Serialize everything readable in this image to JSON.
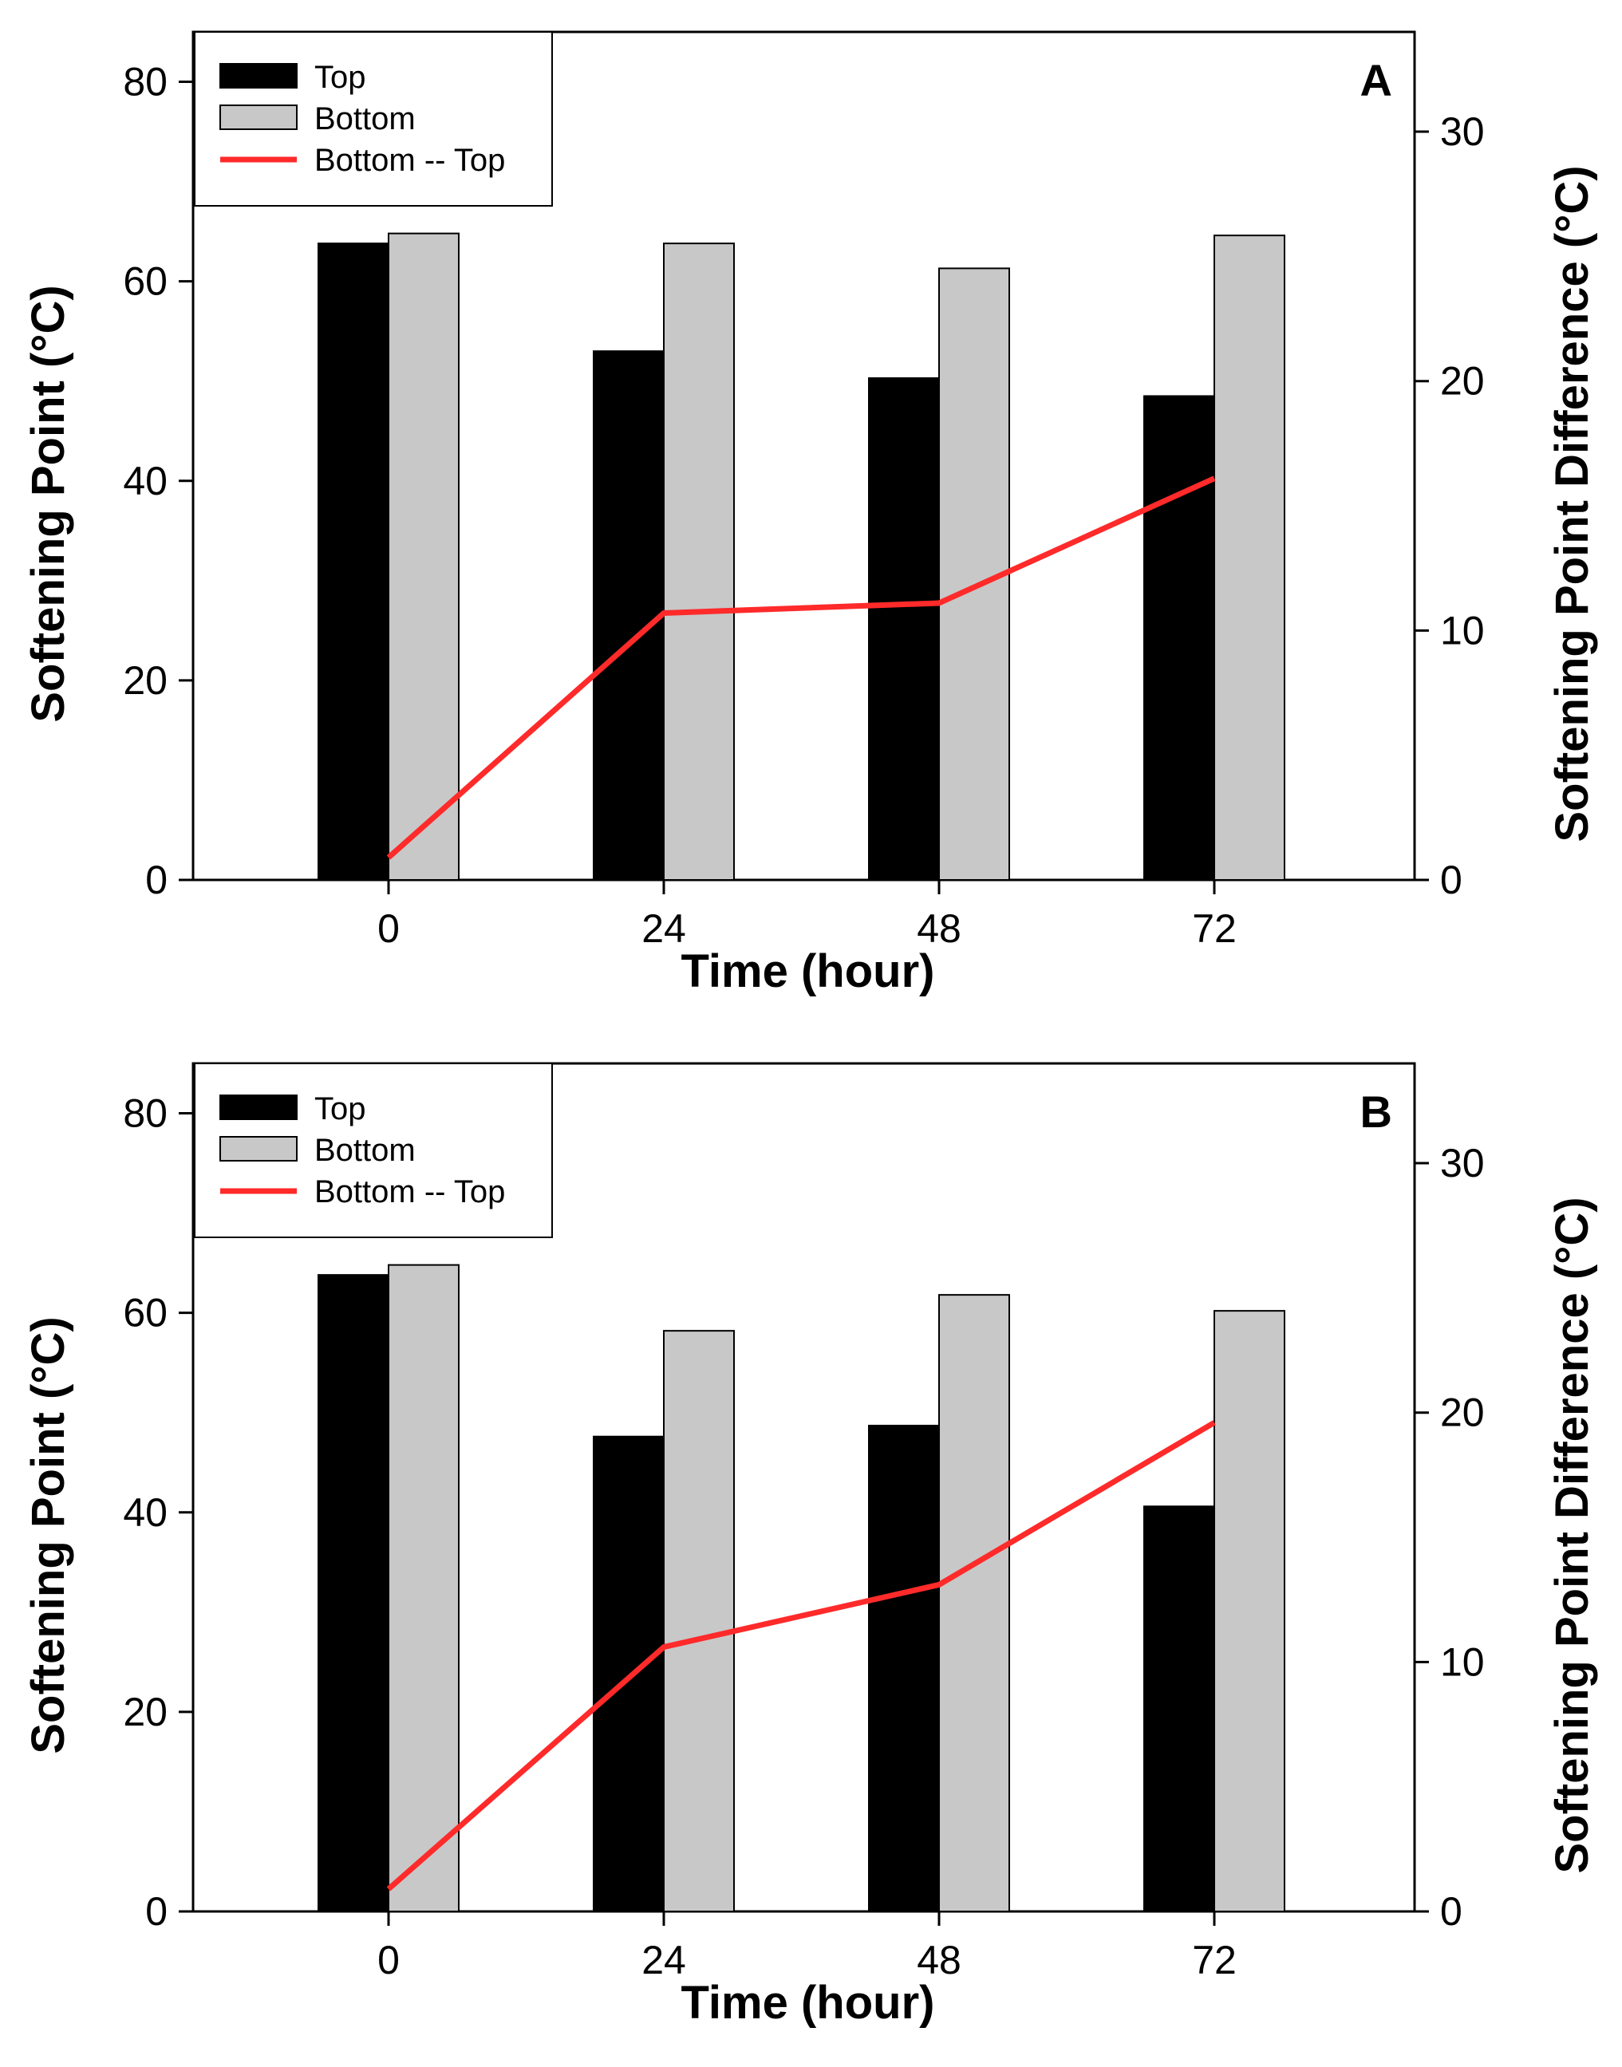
{
  "figure_title": "",
  "chart_data": [
    {
      "type": "bar",
      "panel_label": "A",
      "title": "",
      "categories": [
        "0",
        "24",
        "48",
        "72"
      ],
      "series": [
        {
          "name": "Top",
          "kind": "bar",
          "axis": "left",
          "values": [
            63.8,
            53.0,
            50.3,
            48.5
          ],
          "color": "#000000"
        },
        {
          "name": "Bottom",
          "kind": "bar",
          "axis": "left",
          "values": [
            64.8,
            63.8,
            61.3,
            64.6
          ],
          "color": "#c8c8c8"
        },
        {
          "name": "Bottom -- Top",
          "kind": "line",
          "axis": "right",
          "values": [
            0.9,
            10.7,
            11.1,
            16.1
          ],
          "color": "#ff2a2a"
        }
      ],
      "xlabel": "Time (hour)",
      "ylabel": "Softening Point (°C)",
      "y2label": "Softening Point Difference (°C)",
      "ylim": [
        0,
        85
      ],
      "y2lim": [
        0,
        34
      ],
      "yticks": [
        "0",
        "20",
        "40",
        "60",
        "80"
      ],
      "y2ticks": [
        "0",
        "10",
        "20",
        "30"
      ],
      "legend_position": "top-left",
      "grid": false
    },
    {
      "type": "bar",
      "panel_label": "B",
      "title": "",
      "categories": [
        "0",
        "24",
        "48",
        "72"
      ],
      "series": [
        {
          "name": "Top",
          "kind": "bar",
          "axis": "left",
          "values": [
            63.8,
            47.6,
            48.7,
            40.6
          ],
          "color": "#000000"
        },
        {
          "name": "Bottom",
          "kind": "bar",
          "axis": "left",
          "values": [
            64.8,
            58.2,
            61.8,
            60.2
          ],
          "color": "#c8c8c8"
        },
        {
          "name": "Bottom -- Top",
          "kind": "line",
          "axis": "right",
          "values": [
            0.9,
            10.6,
            13.1,
            19.6
          ],
          "color": "#ff2a2a"
        }
      ],
      "xlabel": "Time (hour)",
      "ylabel": "Softening Point (°C)",
      "y2label": "Softening Point Difference (°C)",
      "ylim": [
        0,
        85
      ],
      "y2lim": [
        0,
        34
      ],
      "yticks": [
        "0",
        "20",
        "40",
        "60",
        "80"
      ],
      "y2ticks": [
        "0",
        "10",
        "20",
        "30"
      ],
      "legend_position": "top-left",
      "grid": false
    }
  ]
}
